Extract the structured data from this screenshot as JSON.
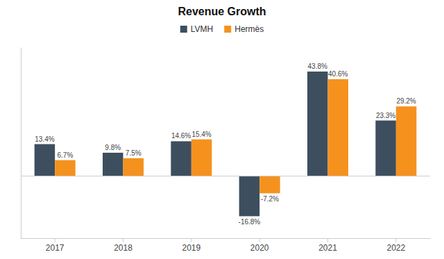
{
  "chart_data": {
    "type": "bar",
    "title": "Revenue Growth",
    "categories": [
      "2017",
      "2018",
      "2019",
      "2020",
      "2021",
      "2022"
    ],
    "series": [
      {
        "name": "LVMH",
        "color": "#3d4e5f",
        "values": [
          13.4,
          9.8,
          14.6,
          -16.8,
          43.8,
          23.3
        ],
        "value_labels": [
          "13.4%",
          "9.8%",
          "14.6%",
          "-16.8%",
          "43.8%",
          "23.3%"
        ]
      },
      {
        "name": "Hermès",
        "color": "#f5921e",
        "values": [
          6.7,
          7.5,
          15.4,
          -7.2,
          40.6,
          29.2
        ],
        "value_labels": [
          "6.7%",
          "7.5%",
          "15.4%",
          "-7.2%",
          "40.6%",
          "29.2%"
        ]
      }
    ],
    "ylim": [
      -26,
      54
    ],
    "data_labels": true,
    "tick_labels": "x",
    "legend": "top",
    "grid": false
  }
}
